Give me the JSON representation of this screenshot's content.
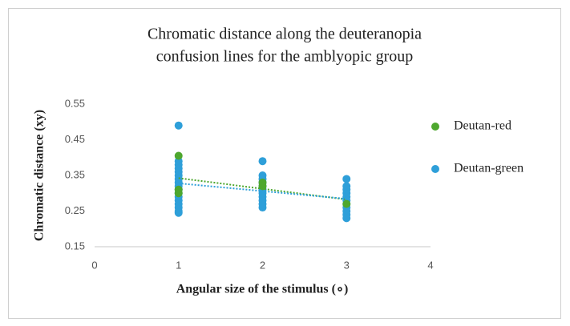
{
  "chart_data": {
    "type": "scatter",
    "title": [
      "Chromatic distance along the deuteranopia",
      "confusion lines for the amblyopic group"
    ],
    "x_label": "Angular size of the stimulus (∘)",
    "y_label": "Chromatic distance (xy)",
    "xlim": [
      0,
      4
    ],
    "xticks": [
      0,
      1,
      2,
      3,
      4
    ],
    "ylim": [
      0.15,
      0.55
    ],
    "yticks": [
      0.15,
      0.25,
      0.35,
      0.45,
      0.55
    ],
    "grid": false,
    "trendline": true,
    "legend": "right",
    "series": [
      {
        "name": "Deutan-red",
        "color": "#4ea72e",
        "x": [
          1,
          1,
          1,
          2,
          2,
          3
        ],
        "values": [
          0.405,
          0.31,
          0.3,
          0.33,
          0.32,
          0.27
        ]
      },
      {
        "name": "Deutan-green",
        "color": "#2e9fd9",
        "x": [
          1,
          1,
          1,
          1,
          1,
          1,
          1,
          1,
          1,
          1,
          1,
          1,
          1,
          1,
          1,
          1,
          1,
          2,
          2,
          2,
          2,
          2,
          2,
          2,
          2,
          2,
          2,
          2,
          3,
          3,
          3,
          3,
          3,
          3,
          3,
          3,
          3,
          3,
          3
        ],
        "values": [
          0.49,
          0.39,
          0.38,
          0.37,
          0.36,
          0.35,
          0.34,
          0.33,
          0.32,
          0.31,
          0.3,
          0.29,
          0.28,
          0.27,
          0.26,
          0.25,
          0.245,
          0.39,
          0.35,
          0.34,
          0.33,
          0.32,
          0.31,
          0.3,
          0.29,
          0.28,
          0.27,
          0.26,
          0.34,
          0.32,
          0.31,
          0.3,
          0.29,
          0.28,
          0.27,
          0.26,
          0.25,
          0.24,
          0.23
        ]
      }
    ]
  }
}
